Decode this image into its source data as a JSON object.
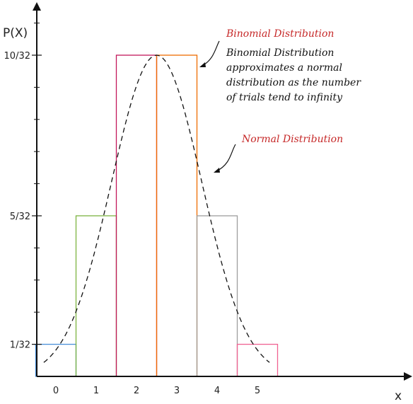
{
  "chart_data": {
    "type": "bar",
    "title": "",
    "xlabel": "x",
    "ylabel": "P(X)",
    "categories": [
      "0",
      "1",
      "2",
      "3",
      "4",
      "5"
    ],
    "values": [
      1,
      5,
      10,
      10,
      5,
      1
    ],
    "value_scale": "thirty-seconds",
    "bar_colors": [
      "#4a90d9",
      "#7cb342",
      "#c2185b",
      "#ef6c00",
      "#9e9e9e",
      "#f06292"
    ],
    "ytick_labels": [
      {
        "value": 1,
        "label": "1/32"
      },
      {
        "value": 5,
        "label": "5/32"
      },
      {
        "value": 10,
        "label": "10/32"
      }
    ],
    "ylim": [
      0,
      14.5
    ],
    "xlim": [
      -0.5,
      8.2
    ],
    "curve": {
      "type": "normal",
      "mean": 2.5,
      "sd": 1.118,
      "peak": 10,
      "style": "dashed"
    },
    "annotations": [
      {
        "id": "binomial",
        "title": "Binomial Distribution",
        "title_color": "#c62828",
        "lines": [
          "Binomial Distribution",
          "approximates a normal",
          "distribution as the number",
          "of trials tend to infinity"
        ]
      },
      {
        "id": "normal",
        "title": "Normal Distribution",
        "title_color": "#c62828",
        "lines": []
      }
    ]
  }
}
